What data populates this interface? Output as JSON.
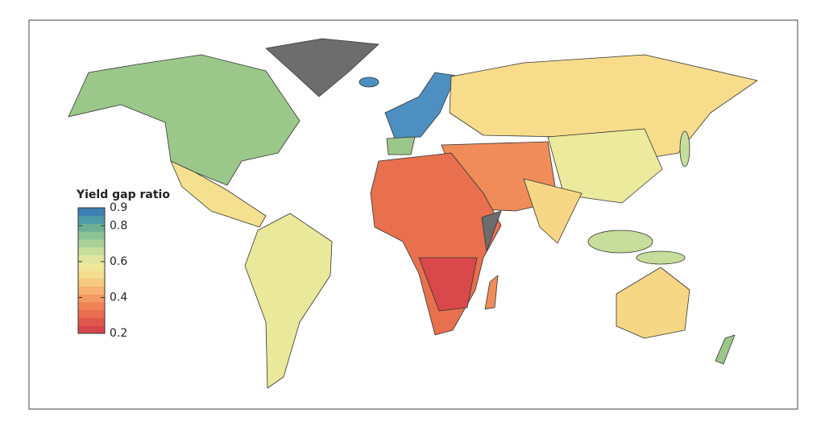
{
  "chart_data": {
    "type": "map",
    "legend_title": "Yield gap ratio",
    "ylim": [
      0.2,
      0.9
    ],
    "yticks": [
      0.9,
      0.8,
      0.6,
      0.4,
      0.2
    ],
    "colors": [
      "#d7454b",
      "#e0584c",
      "#e96d50",
      "#ef8356",
      "#f39a62",
      "#f6b271",
      "#f6c980",
      "#f5dc8f",
      "#efe79a",
      "#dfe69e",
      "#c6dd9b",
      "#a9d197",
      "#8cc394",
      "#6db096",
      "#4f9aa8",
      "#3e7fb3"
    ]
  }
}
